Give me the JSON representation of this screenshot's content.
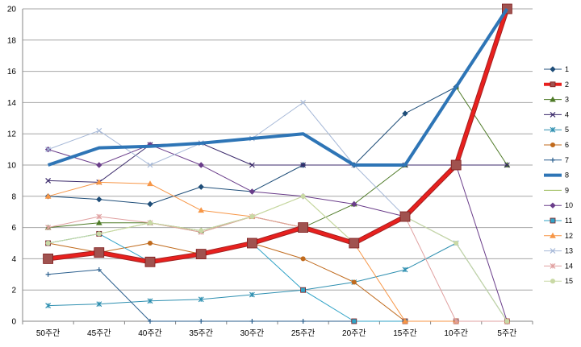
{
  "chart_data": {
    "type": "line",
    "title": "",
    "xlabel": "",
    "ylabel": "",
    "ylim": [
      0,
      20
    ],
    "y_ticks": [
      "0",
      "2",
      "4",
      "6",
      "8",
      "10",
      "12",
      "14",
      "16",
      "18",
      "20"
    ],
    "grid": "horizontal",
    "legend_position": "right",
    "categories": [
      "50주간",
      "45주간",
      "40주간",
      "35주간",
      "30주간",
      "25주간",
      "20주간",
      "15주간",
      "10주간",
      "5주간"
    ],
    "series": [
      {
        "name": "1",
        "color": "#1F4E79",
        "marker": "diamond",
        "width": 1,
        "values": [
          8,
          7.8,
          7.5,
          8.6,
          8.3,
          10,
          10,
          13.3,
          15,
          20
        ]
      },
      {
        "name": "2",
        "color": "#E8201E",
        "marker": "square",
        "width": 4,
        "values": [
          4,
          4.4,
          3.8,
          4.3,
          5,
          6,
          5,
          6.7,
          10,
          20
        ]
      },
      {
        "name": "3",
        "color": "#4E7A27",
        "marker": "triangle",
        "width": 1,
        "values": [
          6,
          6.3,
          6.3,
          5.8,
          6.7,
          6,
          7.5,
          10,
          15,
          10
        ]
      },
      {
        "name": "4",
        "color": "#3B2A6B",
        "marker": "x",
        "width": 1,
        "values": [
          9,
          8.9,
          11.3,
          11.4,
          10,
          10,
          10,
          10,
          10,
          10
        ]
      },
      {
        "name": "5",
        "color": "#2E8FB0",
        "marker": "star",
        "width": 1,
        "values": [
          1,
          1.1,
          1.3,
          1.4,
          1.7,
          2,
          2.5,
          3.3,
          5,
          0
        ]
      },
      {
        "name": "6",
        "color": "#C06A1C",
        "marker": "circle",
        "width": 1,
        "values": [
          5,
          4.4,
          5,
          4.3,
          5,
          4,
          2.5,
          0,
          0,
          0
        ]
      },
      {
        "name": "7",
        "color": "#2B5F8E",
        "marker": "plus",
        "width": 1,
        "values": [
          3,
          3.3,
          0,
          0,
          0,
          0,
          0,
          0,
          0,
          0
        ]
      },
      {
        "name": "8",
        "color": "#2E75B6",
        "marker": "line",
        "width": 4,
        "values": [
          10,
          11.1,
          11.2,
          11.4,
          11.7,
          12,
          10,
          10,
          15,
          20
        ]
      },
      {
        "name": "9",
        "color": "#9BBB59",
        "marker": "line",
        "width": 1,
        "values": [
          5,
          5.6,
          6.3,
          5.7,
          6.7,
          8,
          5,
          6.7,
          5,
          0
        ]
      },
      {
        "name": "10",
        "color": "#6A3D8A",
        "marker": "diamond",
        "width": 1,
        "values": [
          11,
          10,
          11.3,
          10,
          8.3,
          8,
          7.5,
          6.7,
          10,
          0
        ]
      },
      {
        "name": "11",
        "color": "#31A3C7",
        "marker": "square",
        "width": 1,
        "values": [
          5,
          5.6,
          3.8,
          4.3,
          5,
          2,
          0,
          0,
          0,
          0
        ]
      },
      {
        "name": "12",
        "color": "#F79646",
        "marker": "triangle",
        "width": 1,
        "values": [
          8,
          8.9,
          8.8,
          7.1,
          6.7,
          6,
          5,
          0,
          0,
          0
        ]
      },
      {
        "name": "13",
        "color": "#A7B9D8",
        "marker": "x",
        "width": 1,
        "values": [
          11,
          12.2,
          10,
          11.4,
          11.7,
          14,
          10,
          6.7,
          5,
          0
        ]
      },
      {
        "name": "14",
        "color": "#E0A0A0",
        "marker": "star",
        "width": 1,
        "values": [
          6,
          6.7,
          6.3,
          5.7,
          6.7,
          6,
          5,
          6.7,
          0,
          0
        ]
      },
      {
        "name": "15",
        "color": "#C9D9A5",
        "marker": "circle",
        "width": 1,
        "values": [
          5,
          5.6,
          6.3,
          5.8,
          6.7,
          8,
          5,
          6.7,
          5,
          0
        ]
      }
    ]
  }
}
